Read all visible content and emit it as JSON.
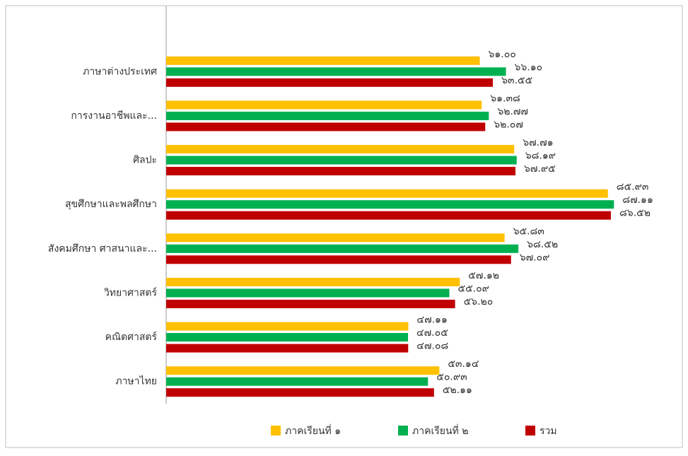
{
  "chart_data": {
    "type": "hbar",
    "categories": [
      "ภาษาต่างประเทศ",
      "การงานอาชีพและ...",
      "ศิลปะ",
      "สุขศึกษาและพลศึกษา",
      "สังคมศึกษา ศาสนาและ...",
      "วิทยาศาสตร์",
      "คณิตศาสตร์",
      "ภาษาไทย"
    ],
    "series": [
      {
        "name": "ภาคเรียนที่ ๑",
        "color": "#FFC000",
        "values": [
          61.0,
          61.38,
          67.71,
          85.93,
          65.83,
          57.12,
          47.11,
          53.14
        ],
        "value_labels": [
          "๖๑.๐๐",
          "๖๑.๓๘",
          "๖๗.๗๑",
          "๘๕.๙๓",
          "๖๕.๘๓",
          "๕๗.๑๒",
          "๔๗.๑๑",
          "๕๓.๑๔"
        ]
      },
      {
        "name": "ภาคเรียนที่ ๒",
        "color": "#00B050",
        "values": [
          66.1,
          62.77,
          68.19,
          87.11,
          68.52,
          55.09,
          47.05,
          50.93
        ],
        "value_labels": [
          "๖๖.๑๐",
          "๖๒.๗๗",
          "๖๘.๑๙",
          "๘๗.๑๑",
          "๖๘.๕๒",
          "๕๕.๐๙",
          "๔๗.๐๕",
          "๕๐.๙๓"
        ]
      },
      {
        "name": "รวม",
        "color": "#C00000",
        "values": [
          63.55,
          62.07,
          67.95,
          86.52,
          67.09,
          56.2,
          47.08,
          52.11
        ],
        "value_labels": [
          "๖๓.๕๕",
          "๖๒.๐๗",
          "๖๗.๙๕",
          "๘๖.๕๒",
          "๖๗.๐๙",
          "๕๖.๒๐",
          "๔๗.๐๘",
          "๕๒.๑๑"
        ]
      }
    ],
    "xlim": [
      0,
      100
    ],
    "legend": "bottom"
  }
}
